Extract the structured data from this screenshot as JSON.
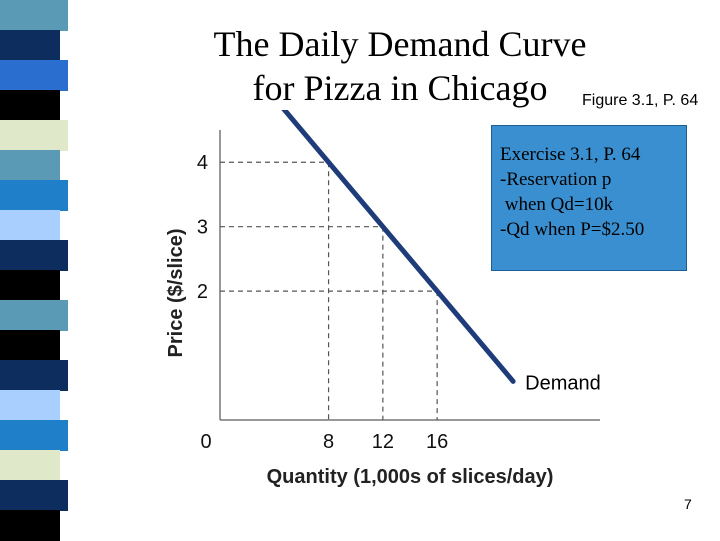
{
  "slide": {
    "title_line1": "The Daily Demand Curve",
    "title_line2": "for Pizza in Chicago",
    "figure_ref": "Figure 3.1, P. 64",
    "exercise_lines": [
      "Exercise 3.1, P. 64",
      "-Reservation p",
      " when Qd=10k",
      "-Qd when P=$2.50"
    ],
    "page_number": "7"
  },
  "chart_data": {
    "type": "line",
    "xlabel": "Quantity (1,000s of slices/day)",
    "ylabel": "Price ($/slice)",
    "x_ticks": [
      "0",
      "8",
      "12",
      "16"
    ],
    "y_ticks": [
      "2",
      "3",
      "4"
    ],
    "xlim": [
      0,
      28
    ],
    "ylim": [
      0,
      4.5
    ],
    "grid": false,
    "series": [
      {
        "name": "Demand",
        "x": [
          0,
          24
        ],
        "y": [
          6,
          0
        ]
      }
    ],
    "reference_points": [
      {
        "x": 8,
        "y": 4
      },
      {
        "x": 12,
        "y": 3
      },
      {
        "x": 16,
        "y": 2
      }
    ],
    "colors": {
      "line": "#1f3c7a",
      "axis": "#777777",
      "dashes": "#555555"
    }
  },
  "stripe_colors": [
    "#5a9ab5",
    "#0c2d5e",
    "#2a6ed0",
    "#000000",
    "#dfe8c8",
    "#5a9ab5",
    "#1f7fc8",
    "#a9cfff",
    "#0c2d5e",
    "#000000",
    "#5a9ab5",
    "#000000",
    "#0c2d5e",
    "#a9cfff",
    "#1f7fc8",
    "#dfe8c8",
    "#0c2d5e",
    "#000000"
  ]
}
